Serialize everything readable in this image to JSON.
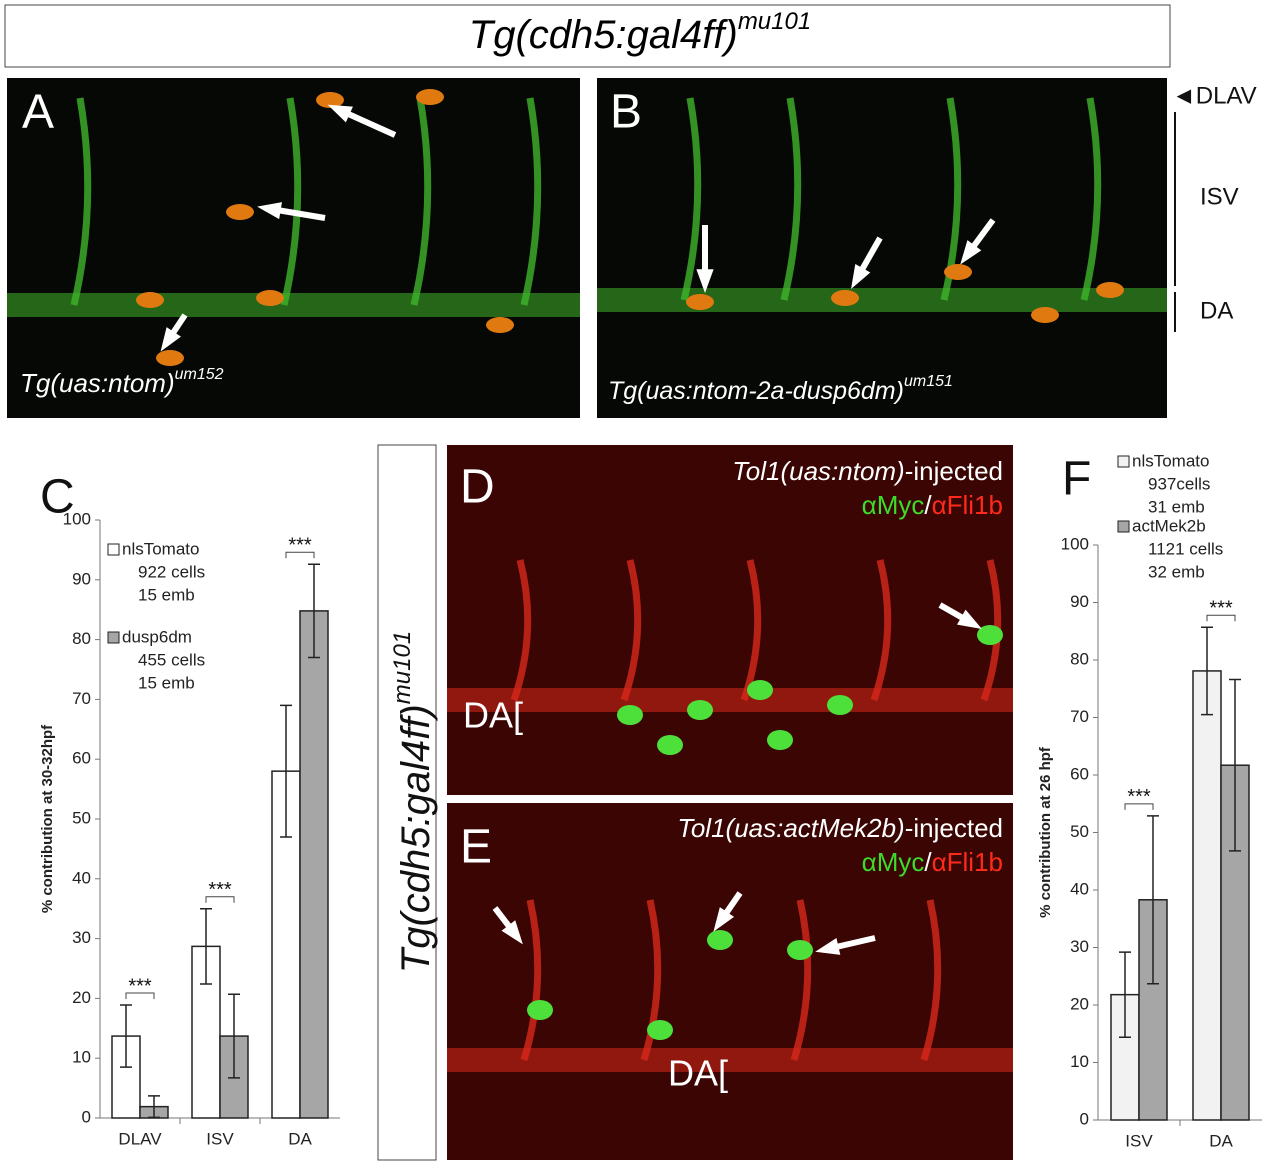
{
  "header": {
    "title": "Tg(cdh5:gal4ff)",
    "superscript": "mu101"
  },
  "panels": {
    "A": {
      "label": "A",
      "genotype": "Tg(uas:ntom)",
      "superscript": "um152"
    },
    "B": {
      "label": "B",
      "genotype": "Tg(uas:ntom-2a-dusp6dm)",
      "superscript": "um151"
    },
    "side_labels": [
      "◄DLAV",
      "ISV",
      "DA"
    ],
    "vertical_label": {
      "text": "Tg(cdh5:gal4ff)",
      "superscript": "mu101"
    },
    "D": {
      "label": "D",
      "construct": "Tol1(uas:ntom)",
      "suffix": "-injected",
      "stain_green": "αMyc",
      "separator": "/",
      "stain_red": "αFli1b",
      "region": "DA["
    },
    "E": {
      "label": "E",
      "construct": "Tol1(uas:actMek2b)",
      "suffix": "-injected",
      "stain_green": "αMyc",
      "separator": "/",
      "stain_red": "αFli1b",
      "region": "DA["
    }
  },
  "chart_data": [
    {
      "type": "bar",
      "panel_label": "C",
      "ylabel": "% contribution at 30-32hpf",
      "categories": [
        "DLAV",
        "ISV",
        "DA"
      ],
      "series": [
        {
          "name": "nlsTomato",
          "color": "#ffffff",
          "values": [
            13.7,
            28.7,
            58
          ],
          "errors": [
            5.2,
            6.3,
            11
          ],
          "details": [
            "922 cells",
            "15 emb"
          ]
        },
        {
          "name": "dusp6dm",
          "color": "#a6a6a6",
          "values": [
            1.9,
            13.7,
            84.8
          ],
          "errors": [
            1.8,
            7,
            7.8
          ],
          "details": [
            "455 cells",
            "15 emb"
          ]
        }
      ],
      "significance": [
        "***",
        "***",
        "***"
      ],
      "ylim": [
        0,
        100
      ],
      "yticks": [
        0,
        10,
        20,
        30,
        40,
        50,
        60,
        70,
        80,
        90,
        100
      ]
    },
    {
      "type": "bar",
      "panel_label": "F",
      "ylabel": "% contribution at 26 hpf",
      "categories": [
        "ISV",
        "DA"
      ],
      "series": [
        {
          "name": "nlsTomato",
          "color": "#f2f2f2",
          "values": [
            21.8,
            78.1
          ],
          "errors": [
            7.4,
            7.6
          ],
          "details": [
            "937cells",
            "31 emb"
          ]
        },
        {
          "name": "actMek2b",
          "color": "#a6a6a6",
          "values": [
            38.3,
            61.7
          ],
          "errors": [
            14.6,
            14.9
          ],
          "details": [
            "1121 cells",
            "32 emb"
          ]
        }
      ],
      "significance": [
        "***",
        "***"
      ],
      "ylim": [
        0,
        100
      ],
      "yticks": [
        0,
        10,
        20,
        30,
        40,
        50,
        60,
        70,
        80,
        90,
        100
      ]
    }
  ]
}
